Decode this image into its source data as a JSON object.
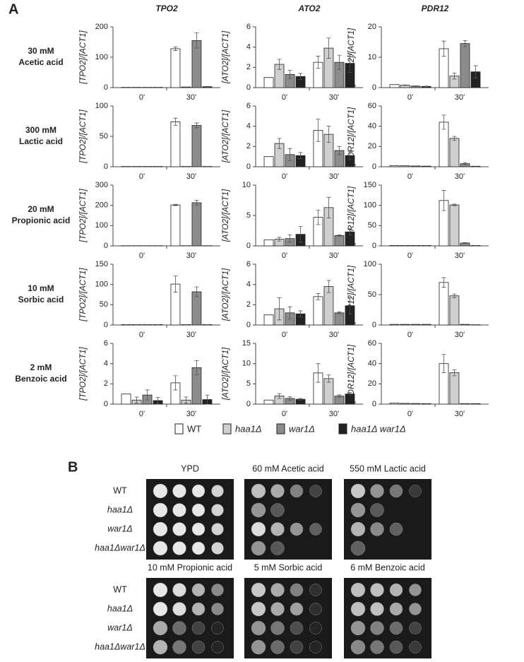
{
  "panel_a_label": "A",
  "panel_b_label": "B",
  "columns": [
    "TPO2",
    "ATO2",
    "PDR12"
  ],
  "rows": [
    [
      "30 mM",
      "Acetic acid"
    ],
    [
      "300 mM",
      "Lactic acid"
    ],
    [
      "20 mM",
      "Propionic acid"
    ],
    [
      "10 mM",
      "Sorbic acid"
    ],
    [
      "2 mM",
      "Benzoic acid"
    ]
  ],
  "legend": [
    {
      "name": "WT",
      "color": "#ffffff"
    },
    {
      "name": "haa1Δ",
      "color": "#cfcfcf"
    },
    {
      "name": "war1Δ",
      "color": "#8c8c8c"
    },
    {
      "name": "haa1Δ war1Δ",
      "color": "#222222"
    }
  ],
  "chart_data": [
    {
      "type": "bar",
      "ylabel": "[TPO2]/[ACT1]",
      "categories": [
        "0'",
        "30'"
      ],
      "ylim": [
        0,
        200
      ],
      "yticks": [
        0,
        100,
        200
      ],
      "series": [
        {
          "values": [
            1,
            128
          ],
          "errors": [
            0,
            6
          ]
        },
        {
          "values": [
            1,
            2
          ],
          "errors": [
            0,
            0
          ]
        },
        {
          "values": [
            1,
            155
          ],
          "errors": [
            0,
            25
          ]
        },
        {
          "values": [
            1,
            3
          ],
          "errors": [
            0,
            1
          ]
        }
      ]
    },
    {
      "type": "bar",
      "ylabel": "[ATO2]/[ACT1]",
      "categories": [
        "0'",
        "30'"
      ],
      "ylim": [
        0,
        6
      ],
      "yticks": [
        0,
        2,
        4,
        6
      ],
      "series": [
        {
          "values": [
            1.0,
            2.5
          ],
          "errors": [
            0,
            0.6
          ]
        },
        {
          "values": [
            2.3,
            3.9
          ],
          "errors": [
            0.5,
            1.0
          ]
        },
        {
          "values": [
            1.3,
            2.5
          ],
          "errors": [
            0.4,
            0.7
          ]
        },
        {
          "values": [
            1.1,
            2.4
          ],
          "errors": [
            0.3,
            0.9
          ]
        }
      ]
    },
    {
      "type": "bar",
      "ylabel": "[PDR12]/[ACT1]",
      "categories": [
        "0'",
        "30'"
      ],
      "ylim": [
        0,
        20
      ],
      "yticks": [
        0,
        10,
        20
      ],
      "series": [
        {
          "values": [
            1,
            12.8
          ],
          "errors": [
            0,
            2.5
          ]
        },
        {
          "values": [
            0.8,
            3.8
          ],
          "errors": [
            0.1,
            1
          ]
        },
        {
          "values": [
            0.5,
            14.5
          ],
          "errors": [
            0.1,
            1
          ]
        },
        {
          "values": [
            0.4,
            5.2
          ],
          "errors": [
            0.1,
            2
          ]
        }
      ]
    },
    {
      "type": "bar",
      "ylabel": "[TPO2]/[ACT1]",
      "categories": [
        "0'",
        "30'"
      ],
      "ylim": [
        0,
        100
      ],
      "yticks": [
        0,
        50,
        100
      ],
      "series": [
        {
          "values": [
            0.5,
            74
          ],
          "errors": [
            0,
            6
          ]
        },
        {
          "values": [
            0.5,
            0.5
          ],
          "errors": [
            0,
            0
          ]
        },
        {
          "values": [
            0.5,
            68
          ],
          "errors": [
            0,
            4
          ]
        },
        {
          "values": [
            0.5,
            0.5
          ],
          "errors": [
            0,
            0
          ]
        }
      ]
    },
    {
      "type": "bar",
      "ylabel": "[ATO2]/[ACT1]",
      "categories": [
        "0'",
        "30'"
      ],
      "ylim": [
        0,
        6
      ],
      "yticks": [
        0,
        2,
        4,
        6
      ],
      "series": [
        {
          "values": [
            1.0,
            3.6
          ],
          "errors": [
            0,
            1.1
          ]
        },
        {
          "values": [
            2.3,
            3.2
          ],
          "errors": [
            0.5,
            0.8
          ]
        },
        {
          "values": [
            1.2,
            1.6
          ],
          "errors": [
            0.6,
            0.4
          ]
        },
        {
          "values": [
            1.1,
            1.1
          ],
          "errors": [
            0.3,
            0.4
          ]
        }
      ]
    },
    {
      "type": "bar",
      "ylabel": "[PDR12]/[ACT1]",
      "categories": [
        "0'",
        "30'"
      ],
      "ylim": [
        0,
        60
      ],
      "yticks": [
        0,
        20,
        40,
        60
      ],
      "series": [
        {
          "values": [
            1,
            44
          ],
          "errors": [
            0,
            7
          ]
        },
        {
          "values": [
            1,
            28
          ],
          "errors": [
            0,
            2
          ]
        },
        {
          "values": [
            0.8,
            3
          ],
          "errors": [
            0,
            1
          ]
        },
        {
          "values": [
            0.6,
            0.5
          ],
          "errors": [
            0,
            0
          ]
        }
      ]
    },
    {
      "type": "bar",
      "ylabel": "[TPO2]/[ACT1]",
      "categories": [
        "0'",
        "30'"
      ],
      "ylim": [
        0,
        300
      ],
      "yticks": [
        0,
        100,
        200,
        300
      ],
      "series": [
        {
          "values": [
            1,
            202
          ],
          "errors": [
            0,
            3
          ]
        },
        {
          "values": [
            1,
            1
          ],
          "errors": [
            0,
            0
          ]
        },
        {
          "values": [
            1,
            213
          ],
          "errors": [
            0,
            12
          ]
        },
        {
          "values": [
            1,
            1
          ],
          "errors": [
            0,
            0
          ]
        }
      ]
    },
    {
      "type": "bar",
      "ylabel": "[ATO2]/[ACT1]",
      "categories": [
        "0'",
        "30'"
      ],
      "ylim": [
        0,
        10
      ],
      "yticks": [
        0,
        5,
        10
      ],
      "series": [
        {
          "values": [
            1,
            4.7
          ],
          "errors": [
            0,
            1.2
          ]
        },
        {
          "values": [
            1.1,
            6.3
          ],
          "errors": [
            0.3,
            1.7
          ]
        },
        {
          "values": [
            1.2,
            1.7
          ],
          "errors": [
            0.6,
            0.1
          ]
        },
        {
          "values": [
            1.9,
            2.3
          ],
          "errors": [
            1.3,
            0.5
          ]
        }
      ]
    },
    {
      "type": "bar",
      "ylabel": "[PDR12]/[ACT1]",
      "categories": [
        "0'",
        "30'"
      ],
      "ylim": [
        0,
        150
      ],
      "yticks": [
        0,
        50,
        100,
        150
      ],
      "series": [
        {
          "values": [
            1,
            112
          ],
          "errors": [
            0,
            25
          ]
        },
        {
          "values": [
            1,
            101
          ],
          "errors": [
            0,
            2
          ]
        },
        {
          "values": [
            1,
            7
          ],
          "errors": [
            0,
            1
          ]
        },
        {
          "values": [
            1,
            1
          ],
          "errors": [
            0,
            0
          ]
        }
      ]
    },
    {
      "type": "bar",
      "ylabel": "[TPO2]/[ACT1]",
      "categories": [
        "0'",
        "30'"
      ],
      "ylim": [
        0,
        150
      ],
      "yticks": [
        0,
        50,
        100,
        150
      ],
      "series": [
        {
          "values": [
            1,
            101
          ],
          "errors": [
            0,
            20
          ]
        },
        {
          "values": [
            1,
            1
          ],
          "errors": [
            0,
            0
          ]
        },
        {
          "values": [
            1,
            82
          ],
          "errors": [
            0,
            12
          ]
        },
        {
          "values": [
            1,
            1
          ],
          "errors": [
            0,
            0
          ]
        }
      ]
    },
    {
      "type": "bar",
      "ylabel": "[ATO2]/[ACT1]",
      "categories": [
        "0'",
        "30'"
      ],
      "ylim": [
        0,
        6
      ],
      "yticks": [
        0,
        2,
        4,
        6
      ],
      "series": [
        {
          "values": [
            1.0,
            2.8
          ],
          "errors": [
            0,
            0.3
          ]
        },
        {
          "values": [
            1.6,
            3.8
          ],
          "errors": [
            1.1,
            0.6
          ]
        },
        {
          "values": [
            1.2,
            1.2
          ],
          "errors": [
            0.6,
            0.1
          ]
        },
        {
          "values": [
            1.1,
            1.9
          ],
          "errors": [
            0.3,
            0.8
          ]
        }
      ]
    },
    {
      "type": "bar",
      "ylabel": "[PDR12]/[ACT1]",
      "categories": [
        "0'",
        "30'"
      ],
      "ylim": [
        0,
        100
      ],
      "yticks": [
        0,
        50,
        100
      ],
      "series": [
        {
          "values": [
            1,
            70
          ],
          "errors": [
            0,
            8
          ]
        },
        {
          "values": [
            1,
            48
          ],
          "errors": [
            0,
            3
          ]
        },
        {
          "values": [
            1,
            1
          ],
          "errors": [
            0,
            0
          ]
        },
        {
          "values": [
            1,
            0.5
          ],
          "errors": [
            0,
            0
          ]
        }
      ]
    },
    {
      "type": "bar",
      "ylabel": "[TPO2]/[ACT1]",
      "categories": [
        "0'",
        "30'"
      ],
      "ylim": [
        0,
        6
      ],
      "yticks": [
        0,
        2,
        4,
        6
      ],
      "series": [
        {
          "values": [
            1.0,
            2.1
          ],
          "errors": [
            0,
            0.7
          ]
        },
        {
          "values": [
            0.4,
            0.4
          ],
          "errors": [
            0.3,
            0.3
          ]
        },
        {
          "values": [
            0.9,
            3.6
          ],
          "errors": [
            0.5,
            0.7
          ]
        },
        {
          "values": [
            0.35,
            0.45
          ],
          "errors": [
            0.3,
            0.45
          ]
        }
      ]
    },
    {
      "type": "bar",
      "ylabel": "[ATO2]/[ACT1]",
      "categories": [
        "0'",
        "30'"
      ],
      "ylim": [
        0,
        15
      ],
      "yticks": [
        0,
        5,
        10,
        15
      ],
      "series": [
        {
          "values": [
            1,
            7.7
          ],
          "errors": [
            0,
            2.3
          ]
        },
        {
          "values": [
            2.0,
            6.3
          ],
          "errors": [
            0.6,
            0.9
          ]
        },
        {
          "values": [
            1.4,
            2.0
          ],
          "errors": [
            0.4,
            0.3
          ]
        },
        {
          "values": [
            1.2,
            2.5
          ],
          "errors": [
            0.2,
            0.4
          ]
        }
      ]
    },
    {
      "type": "bar",
      "ylabel": "[PDR12]/[ACT1]",
      "categories": [
        "0'",
        "30'"
      ],
      "ylim": [
        0,
        60
      ],
      "yticks": [
        0,
        20,
        40,
        60
      ],
      "series": [
        {
          "values": [
            1,
            40
          ],
          "errors": [
            0,
            9
          ]
        },
        {
          "values": [
            0.8,
            31
          ],
          "errors": [
            0,
            3
          ]
        },
        {
          "values": [
            0.6,
            0.5
          ],
          "errors": [
            0,
            0
          ]
        },
        {
          "values": [
            0.5,
            0.5
          ],
          "errors": [
            0,
            0
          ]
        }
      ]
    }
  ],
  "panel_b": {
    "strains": [
      "WT",
      "haa1Δ",
      "war1Δ",
      "haa1Δwar1Δ"
    ],
    "plates": [
      "YPD",
      "60 mM Acetic acid",
      "550 mM Lactic acid",
      "10 mM Propionic acid",
      "5 mM Sorbic acid",
      "6 mM Benzoic acid"
    ]
  }
}
